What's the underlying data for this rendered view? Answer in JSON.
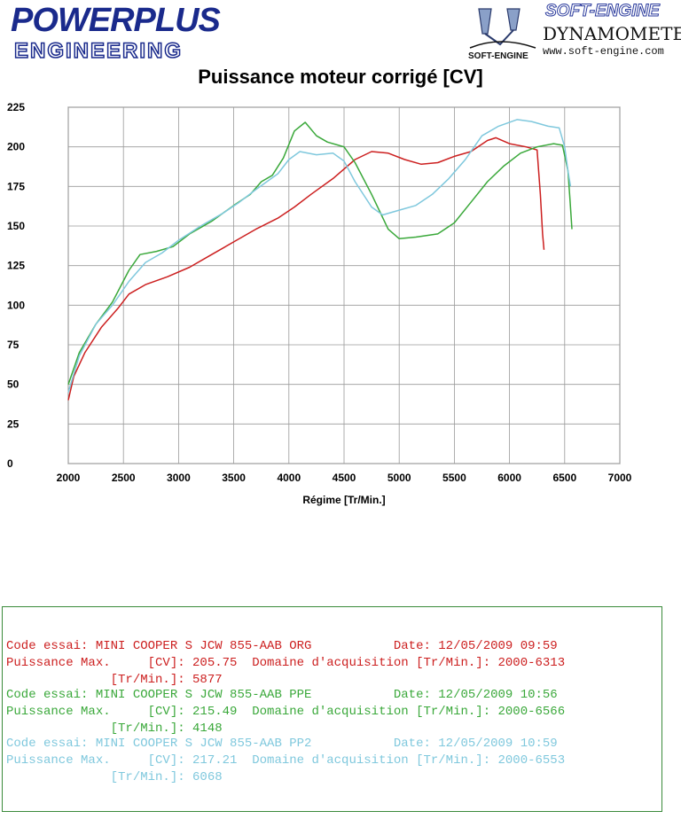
{
  "header": {
    "logo_left_line1": "POWERPLUS",
    "logo_left_line2": "ENGINEERING",
    "logo_right_brand": "SOFT-ENGINE",
    "logo_right_line2": "DYNAMOMETERS",
    "logo_right_url": "www.soft-engine.com",
    "logo_right_emblem_text": "SOFT-ENGINE",
    "brand_color": "#1a2a8c"
  },
  "chart_data": {
    "type": "line",
    "title": "Puissance moteur corrigé [CV]",
    "xlabel": "Régime [Tr/Min.]",
    "ylabel": "",
    "xlim": [
      2000,
      7000
    ],
    "ylim": [
      0,
      225
    ],
    "xticks": [
      2000,
      2500,
      3000,
      3500,
      4000,
      4500,
      5000,
      5500,
      6000,
      6500,
      7000
    ],
    "yticks": [
      0,
      25,
      50,
      75,
      100,
      125,
      150,
      175,
      200,
      225
    ],
    "grid": true,
    "series": [
      {
        "color": "#cc1f1f",
        "points": [
          [
            2000,
            40
          ],
          [
            2050,
            55
          ],
          [
            2150,
            70
          ],
          [
            2300,
            86
          ],
          [
            2450,
            98
          ],
          [
            2550,
            107
          ],
          [
            2700,
            113
          ],
          [
            2900,
            118
          ],
          [
            3100,
            124
          ],
          [
            3300,
            132
          ],
          [
            3500,
            140
          ],
          [
            3700,
            148
          ],
          [
            3900,
            155
          ],
          [
            4050,
            162
          ],
          [
            4200,
            170
          ],
          [
            4400,
            180
          ],
          [
            4600,
            192
          ],
          [
            4750,
            197
          ],
          [
            4900,
            196
          ],
          [
            5050,
            192
          ],
          [
            5200,
            189
          ],
          [
            5350,
            190
          ],
          [
            5500,
            194
          ],
          [
            5650,
            197
          ],
          [
            5800,
            204
          ],
          [
            5877,
            205.75
          ],
          [
            6000,
            202
          ],
          [
            6150,
            200
          ],
          [
            6250,
            198
          ],
          [
            6280,
            170
          ],
          [
            6300,
            145
          ],
          [
            6313,
            135
          ]
        ]
      },
      {
        "color": "#3aa83a",
        "points": [
          [
            2000,
            50
          ],
          [
            2100,
            70
          ],
          [
            2250,
            88
          ],
          [
            2400,
            102
          ],
          [
            2550,
            122
          ],
          [
            2650,
            132
          ],
          [
            2800,
            134
          ],
          [
            2950,
            137
          ],
          [
            3100,
            145
          ],
          [
            3300,
            153
          ],
          [
            3500,
            163
          ],
          [
            3650,
            170
          ],
          [
            3750,
            178
          ],
          [
            3850,
            182
          ],
          [
            3950,
            193
          ],
          [
            4050,
            210
          ],
          [
            4148,
            215.49
          ],
          [
            4250,
            207
          ],
          [
            4350,
            203
          ],
          [
            4500,
            200
          ],
          [
            4600,
            190
          ],
          [
            4750,
            170
          ],
          [
            4900,
            148
          ],
          [
            5000,
            142
          ],
          [
            5150,
            143
          ],
          [
            5350,
            145
          ],
          [
            5500,
            152
          ],
          [
            5650,
            165
          ],
          [
            5800,
            178
          ],
          [
            5950,
            188
          ],
          [
            6100,
            196
          ],
          [
            6250,
            200
          ],
          [
            6400,
            202
          ],
          [
            6480,
            201
          ],
          [
            6530,
            185
          ],
          [
            6550,
            165
          ],
          [
            6566,
            148
          ]
        ]
      },
      {
        "color": "#7fc8dd",
        "points": [
          [
            2000,
            45
          ],
          [
            2100,
            68
          ],
          [
            2250,
            88
          ],
          [
            2400,
            100
          ],
          [
            2550,
            115
          ],
          [
            2700,
            127
          ],
          [
            2850,
            133
          ],
          [
            3000,
            141
          ],
          [
            3200,
            150
          ],
          [
            3400,
            158
          ],
          [
            3550,
            165
          ],
          [
            3700,
            173
          ],
          [
            3800,
            178
          ],
          [
            3900,
            183
          ],
          [
            4000,
            192
          ],
          [
            4100,
            197
          ],
          [
            4250,
            195
          ],
          [
            4400,
            196
          ],
          [
            4500,
            191
          ],
          [
            4600,
            178
          ],
          [
            4750,
            162
          ],
          [
            4850,
            157
          ],
          [
            5000,
            160
          ],
          [
            5150,
            163
          ],
          [
            5300,
            170
          ],
          [
            5450,
            180
          ],
          [
            5600,
            192
          ],
          [
            5750,
            207
          ],
          [
            5900,
            213
          ],
          [
            6068,
            217.21
          ],
          [
            6200,
            216
          ],
          [
            6350,
            213
          ],
          [
            6450,
            212
          ],
          [
            6500,
            200
          ],
          [
            6530,
            185
          ],
          [
            6553,
            175
          ]
        ]
      }
    ]
  },
  "info": {
    "lines": [
      {
        "text": "Code essai: MINI COOPER S JCW 855-AAB ORG           Date: 12/05/2009 09:59",
        "color": "#cc1f1f"
      },
      {
        "text": "Puissance Max.     [CV]: 205.75  Domaine d'acquisition [Tr/Min.]: 2000-6313",
        "color": "#cc1f1f"
      },
      {
        "text": "              [Tr/Min.]: 5877",
        "color": "#cc1f1f"
      },
      {
        "text": "Code essai: MINI COOPER S JCW 855-AAB PPE           Date: 12/05/2009 10:56",
        "color": "#3aa83a"
      },
      {
        "text": "Puissance Max.     [CV]: 215.49  Domaine d'acquisition [Tr/Min.]: 2000-6566",
        "color": "#3aa83a"
      },
      {
        "text": "              [Tr/Min.]: 4148",
        "color": "#3aa83a"
      },
      {
        "text": "Code essai: MINI COOPER S JCW 855-AAB PP2           Date: 12/05/2009 10:59",
        "color": "#7fc8dd"
      },
      {
        "text": "Puissance Max.     [CV]: 217.21  Domaine d'acquisition [Tr/Min.]: 2000-6553",
        "color": "#7fc8dd"
      },
      {
        "text": "              [Tr/Min.]: 6068",
        "color": "#7fc8dd"
      }
    ]
  }
}
